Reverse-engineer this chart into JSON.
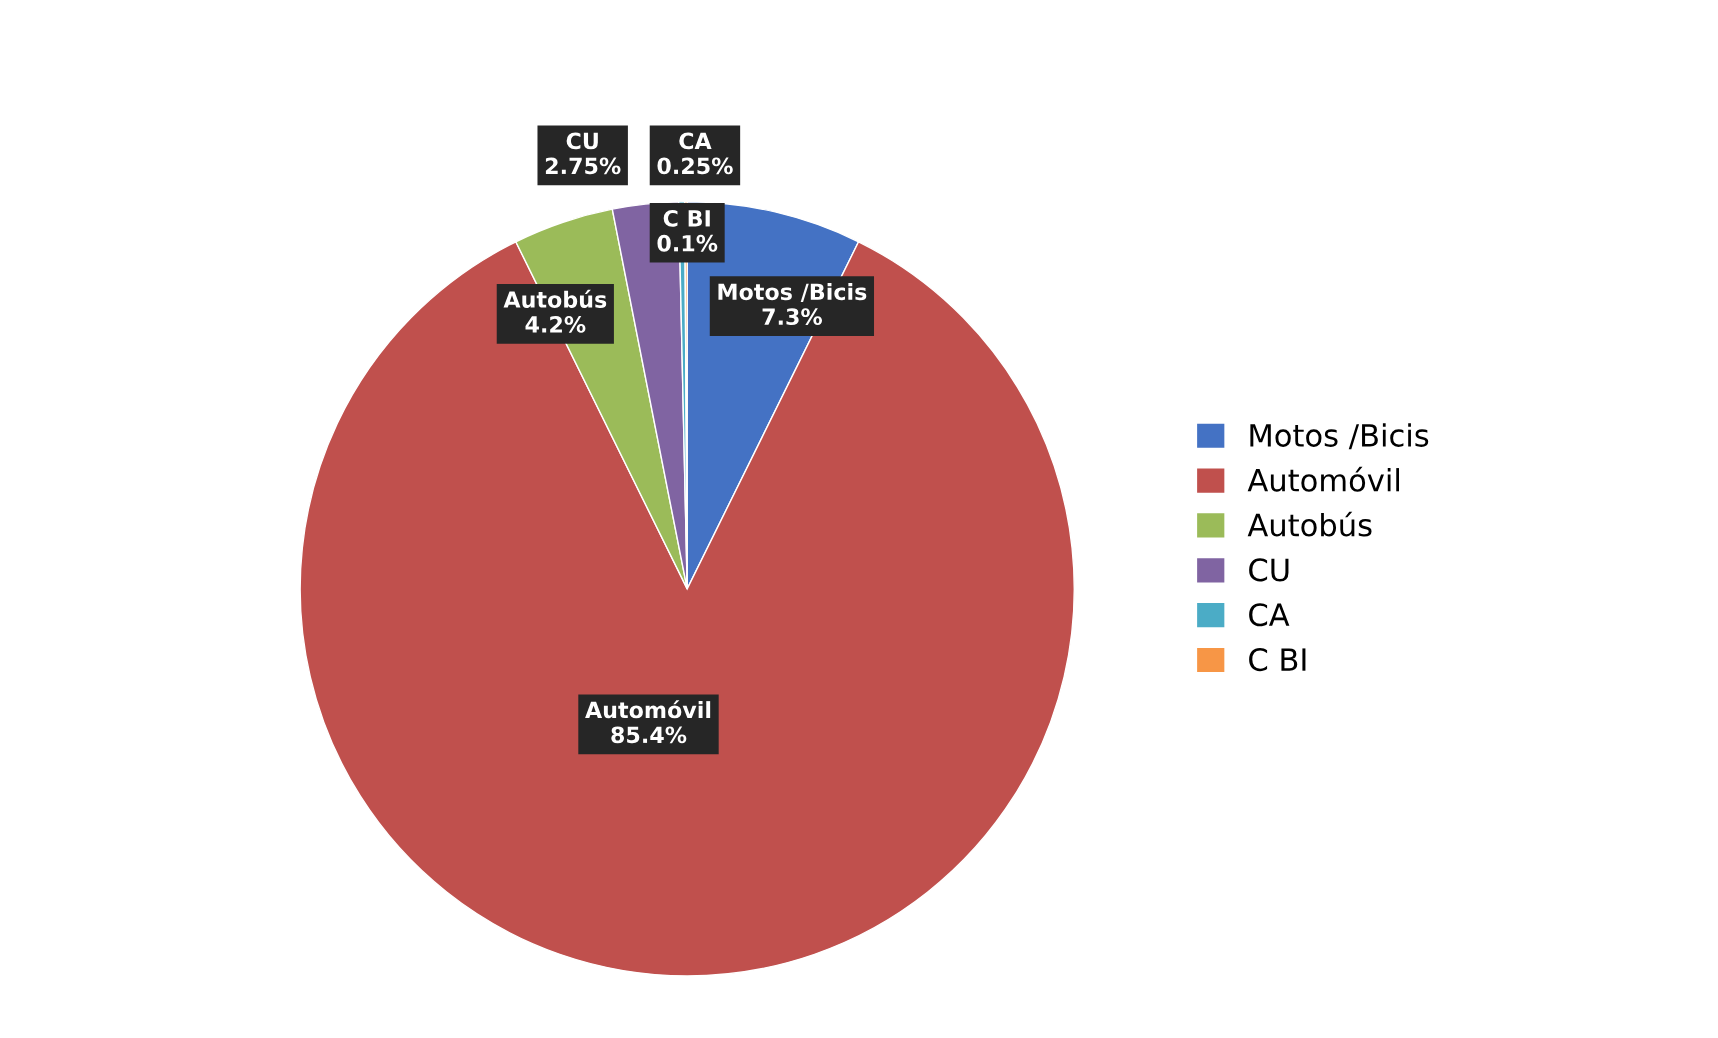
{
  "chart_data": {
    "type": "pie",
    "categories": [
      "Motos /Bicis",
      "Automóvil",
      "Autobús",
      "CU",
      "CA",
      "C BI"
    ],
    "values": [
      7.3,
      85.4,
      4.2,
      2.75,
      0.25,
      0.1
    ],
    "colors": [
      "#4472c4",
      "#c0504d",
      "#9bbb59",
      "#8064a2",
      "#4bacc6",
      "#f79646"
    ],
    "value_labels": [
      "7.3%",
      "85.4%",
      "4.2%",
      "2.75%",
      "0.25%",
      "0.1%"
    ],
    "legend": "right"
  }
}
